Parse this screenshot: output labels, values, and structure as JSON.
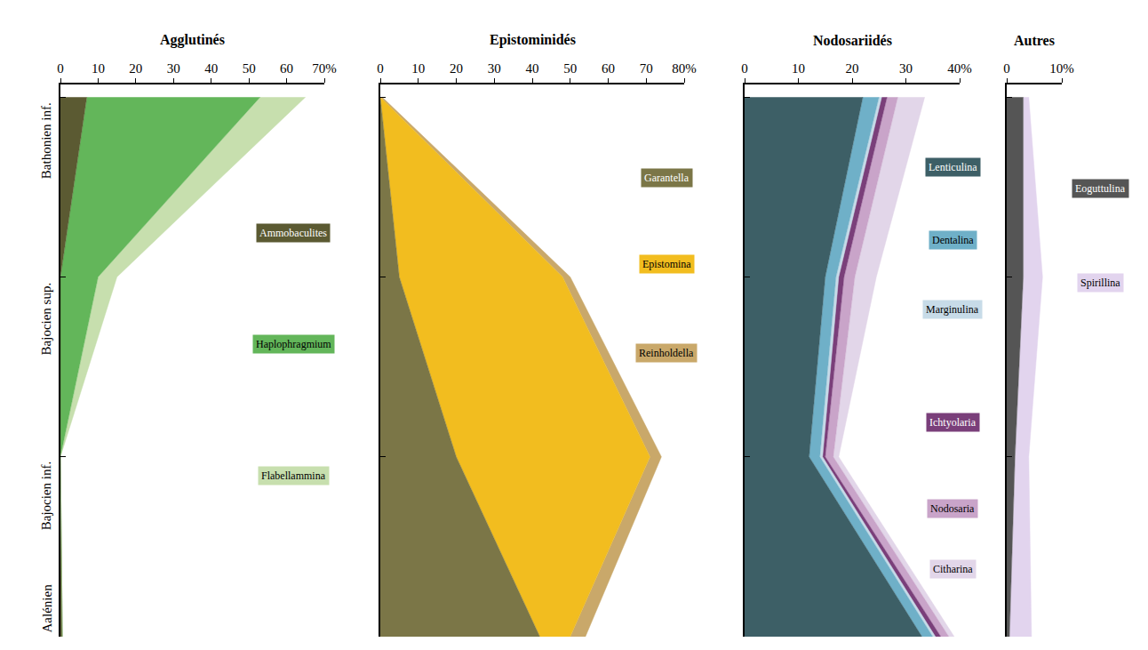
{
  "chart_data": [
    {
      "type": "area",
      "title": "Agglutinés",
      "stacked": true,
      "orientation": "horizontal",
      "grid": false,
      "categories": [
        "Aalénien",
        "Bajocien inf.",
        "Bajocien sup.",
        "Bathonien inf."
      ],
      "xlim": [
        0,
        70
      ],
      "xticks": [
        0,
        10,
        20,
        30,
        40,
        50,
        60,
        {
          "value": 70,
          "label": "70%"
        }
      ],
      "ylim": [
        0,
        3.07
      ],
      "series": [
        {
          "name": "Ammobaculites",
          "color": "#5b5a32",
          "values": [
            0.5,
            0,
            0,
            7
          ]
        },
        {
          "name": "Haplophragmium",
          "color": "#63b65a",
          "values": [
            0,
            0,
            10,
            46
          ]
        },
        {
          "name": "Flabellammina",
          "color": "#c7dfae",
          "values": [
            0,
            0,
            5,
            12
          ]
        }
      ]
    },
    {
      "type": "area",
      "title": "Epistominidés",
      "stacked": true,
      "orientation": "horizontal",
      "grid": false,
      "categories": [
        "Aalénien",
        "Bajocien inf.",
        "Bajocien sup.",
        "Bathonien inf."
      ],
      "xlim": [
        0,
        80
      ],
      "xticks": [
        0,
        10,
        20,
        30,
        40,
        50,
        60,
        70,
        {
          "value": 80,
          "label": "80%"
        }
      ],
      "ylim": [
        0,
        3.07
      ],
      "series": [
        {
          "name": "Garantella",
          "color": "#7b7647",
          "values": [
            42,
            20,
            5,
            0
          ]
        },
        {
          "name": "Epistomina",
          "color": "#f2bd1f",
          "values": [
            8,
            51,
            43,
            0
          ]
        },
        {
          "name": "Reinholdella",
          "color": "#c9a86a",
          "values": [
            4,
            3,
            2,
            0.5
          ]
        }
      ]
    },
    {
      "type": "area",
      "title": "Nodosariidés",
      "stacked": true,
      "orientation": "horizontal",
      "grid": false,
      "categories": [
        "Aalénien",
        "Bajocien inf.",
        "Bajocien sup.",
        "Bathonien inf."
      ],
      "xlim": [
        0,
        40
      ],
      "xticks": [
        0,
        10,
        20,
        30,
        {
          "value": 40,
          "label": "40%"
        }
      ],
      "ylim": [
        0,
        3.07
      ],
      "series": [
        {
          "name": "Lenticulina",
          "color": "#3d5f66",
          "values": [
            33,
            12,
            15,
            22
          ]
        },
        {
          "name": "Dentalina",
          "color": "#6fb0c8",
          "values": [
            2,
            2,
            2,
            3
          ]
        },
        {
          "name": "Marginulina",
          "color": "#c7dbe8",
          "values": [
            0.5,
            0.5,
            0.5,
            0.5
          ]
        },
        {
          "name": "Ichtyolaria",
          "color": "#7a3f7a",
          "values": [
            1,
            0.5,
            1,
            1
          ]
        },
        {
          "name": "Nodosaria",
          "color": "#c9a4c9",
          "values": [
            1.5,
            1.5,
            2,
            2
          ]
        },
        {
          "name": "Citharina",
          "color": "#e2d6e9",
          "values": [
            1,
            1,
            4,
            5
          ]
        }
      ]
    },
    {
      "type": "area",
      "title": "Autres",
      "stacked": true,
      "orientation": "horizontal",
      "grid": false,
      "categories": [
        "Aalénien",
        "Bajocien inf.",
        "Bajocien sup.",
        "Bathonien inf."
      ],
      "xlim": [
        0,
        10
      ],
      "xticks": [
        0,
        {
          "value": 10,
          "label": "10%"
        }
      ],
      "ylim": [
        0,
        3.07
      ],
      "series": [
        {
          "name": "Eoguttulina",
          "color": "#555555",
          "values": [
            0.5,
            1.5,
            3,
            3
          ]
        },
        {
          "name": "Spirillina",
          "color": "#e2d4ee",
          "values": [
            4,
            2.5,
            3.5,
            1
          ]
        }
      ]
    }
  ]
}
